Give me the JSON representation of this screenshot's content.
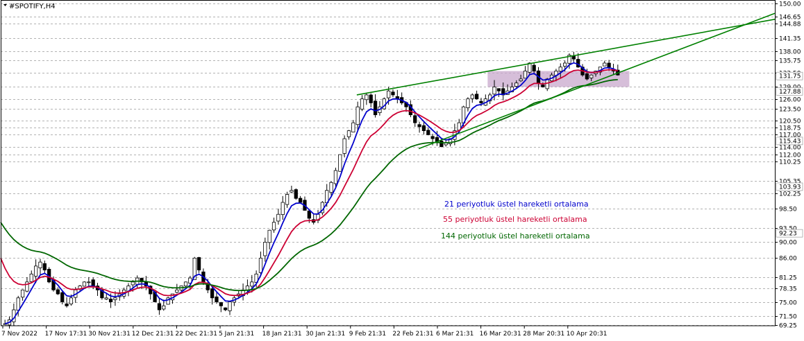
{
  "header": {
    "symbol_label": "#SPOTIFY,H4"
  },
  "chart_data": {
    "type": "candlestick",
    "title": "",
    "xlabel": "",
    "ylabel": "",
    "ylim": [
      69.0,
      150.5
    ],
    "grid": true,
    "x_tick_labels": [
      "7 Nov 2022",
      "17 Nov 17:31",
      "30 Nov 21:31",
      "12 Dec 21:31",
      "22 Dec 21:31",
      "5 Jan 21:31",
      "18 Jan 21:31",
      "30 Jan 21:31",
      "9 Feb 21:31",
      "22 Feb 21:31",
      "6 Mar 21:31",
      "16 Mar 20:31",
      "28 Mar 20:31",
      "10 Apr 20:31"
    ],
    "y_tick_labels": [
      "150.00",
      "146.65",
      "144.88",
      "141.35",
      "138.00",
      "135.75",
      "132.50",
      "129.00",
      "126.00",
      "123.50",
      "120.50",
      "118.75",
      "117.00",
      "114.00",
      "112.00",
      "110.25",
      "105.35",
      "102.25",
      "98.50",
      "93.50",
      "90.00",
      "86.00",
      "81.25",
      "78.35",
      "75.00",
      "71.50",
      "69.25"
    ],
    "price_highlights": [
      "131.75",
      "127.88",
      "115.43",
      "103.93",
      "92.23"
    ],
    "close_series": [
      69.5,
      70.5,
      73,
      76,
      78,
      80,
      82,
      84,
      85,
      83,
      80,
      78,
      77,
      75,
      74,
      76,
      78,
      79,
      80,
      80,
      79,
      78,
      76,
      76,
      75,
      76,
      77,
      78,
      79,
      80,
      81,
      80,
      79,
      77,
      75,
      73,
      74,
      76,
      77,
      78,
      79,
      80,
      81,
      86,
      83,
      80,
      78,
      76,
      75,
      74,
      73,
      75,
      76,
      77,
      78,
      79,
      80,
      82,
      86,
      90,
      93,
      95,
      97,
      100,
      102,
      103,
      101,
      100,
      98,
      96,
      95,
      97,
      100,
      103,
      105,
      108,
      112,
      116,
      118,
      120,
      124,
      126,
      127,
      125,
      122,
      124,
      126,
      128,
      127,
      126,
      125,
      124,
      122,
      120,
      119,
      118,
      117,
      116,
      115,
      114,
      115,
      116,
      118,
      120,
      124,
      126,
      127,
      126,
      125,
      126,
      127,
      129,
      128,
      127,
      128,
      129,
      130,
      131,
      133,
      135,
      133,
      130,
      129,
      131,
      132,
      133,
      134,
      135,
      137,
      136,
      134,
      132,
      131,
      132,
      133,
      134,
      135,
      134,
      133,
      132
    ],
    "series": [
      {
        "name": "21 periyotluk üstel hareketli ortalama",
        "color": "#0000cc"
      },
      {
        "name": "55 periyotluk üstel hareketli ortalama",
        "color": "#cc0033"
      },
      {
        "name": "144 periyotluk üstel hareketli ortalama",
        "color": "#006600"
      }
    ],
    "trendlines": [
      {
        "color": "#008000",
        "from": [
          0.46,
          127.0
        ],
        "to": [
          1.0,
          146.0
        ]
      },
      {
        "color": "#008000",
        "from": [
          0.54,
          113.5
        ],
        "to": [
          1.0,
          147.5
        ]
      }
    ],
    "zone": {
      "color": "#c8a8cc",
      "y_low": 129.0,
      "y_high": 133.0,
      "x_from": 0.629,
      "x_to": 0.812
    }
  },
  "annotations": [
    {
      "text": "21 periyotluk üstel hareketli ortalama",
      "color": "#0000cc"
    },
    {
      "text": "55 periyotluk üstel hareketli ortalama",
      "color": "#cc0033"
    },
    {
      "text": "144 periyotluk üstel hareketli ortalama",
      "color": "#006600"
    }
  ]
}
